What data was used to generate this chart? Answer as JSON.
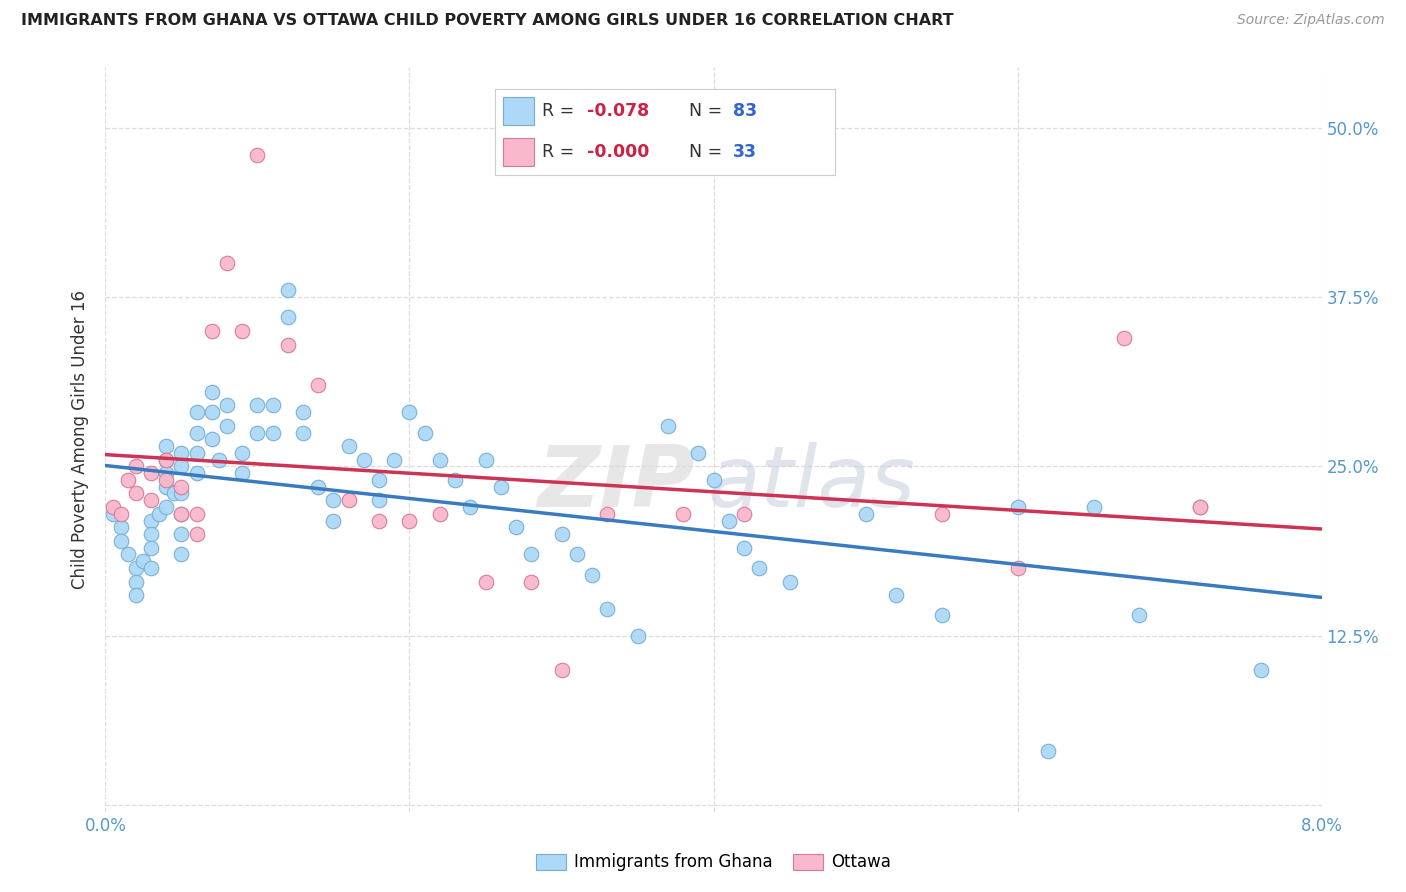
{
  "title": "IMMIGRANTS FROM GHANA VS OTTAWA CHILD POVERTY AMONG GIRLS UNDER 16 CORRELATION CHART",
  "source": "Source: ZipAtlas.com",
  "ylabel": "Child Poverty Among Girls Under 16",
  "xlim": [
    0.0,
    0.08
  ],
  "ylim": [
    -0.005,
    0.545
  ],
  "xticks": [
    0.0,
    0.02,
    0.04,
    0.06,
    0.08
  ],
  "xtick_labels": [
    "0.0%",
    "",
    "",
    "",
    "8.0%"
  ],
  "yticks": [
    0.0,
    0.125,
    0.25,
    0.375,
    0.5
  ],
  "ytick_labels_right": [
    "",
    "12.5%",
    "25.0%",
    "37.5%",
    "50.0%"
  ],
  "series1_color": "#add8f7",
  "series2_color": "#f9b8cc",
  "series1_edge": "#75aed4",
  "series2_edge": "#d87898",
  "trendline1_color": "#3a7abf",
  "trendline2_color": "#cc3355",
  "R1": -0.078,
  "N1": 83,
  "R2": -0.0,
  "N2": 33,
  "series1_x": [
    0.0005,
    0.001,
    0.001,
    0.0015,
    0.002,
    0.002,
    0.002,
    0.0025,
    0.003,
    0.003,
    0.003,
    0.003,
    0.0035,
    0.004,
    0.004,
    0.004,
    0.004,
    0.004,
    0.0045,
    0.005,
    0.005,
    0.005,
    0.005,
    0.005,
    0.005,
    0.006,
    0.006,
    0.006,
    0.006,
    0.007,
    0.007,
    0.007,
    0.0075,
    0.008,
    0.008,
    0.009,
    0.009,
    0.01,
    0.01,
    0.011,
    0.011,
    0.012,
    0.012,
    0.013,
    0.013,
    0.014,
    0.015,
    0.015,
    0.016,
    0.017,
    0.018,
    0.018,
    0.019,
    0.02,
    0.021,
    0.022,
    0.023,
    0.024,
    0.025,
    0.026,
    0.027,
    0.028,
    0.03,
    0.031,
    0.032,
    0.033,
    0.035,
    0.037,
    0.039,
    0.04,
    0.041,
    0.042,
    0.043,
    0.045,
    0.05,
    0.052,
    0.055,
    0.06,
    0.062,
    0.065,
    0.068,
    0.072,
    0.076
  ],
  "series1_y": [
    0.215,
    0.205,
    0.195,
    0.185,
    0.175,
    0.165,
    0.155,
    0.18,
    0.21,
    0.2,
    0.19,
    0.175,
    0.215,
    0.265,
    0.255,
    0.245,
    0.235,
    0.22,
    0.23,
    0.26,
    0.25,
    0.23,
    0.215,
    0.2,
    0.185,
    0.29,
    0.275,
    0.26,
    0.245,
    0.305,
    0.29,
    0.27,
    0.255,
    0.295,
    0.28,
    0.26,
    0.245,
    0.295,
    0.275,
    0.295,
    0.275,
    0.38,
    0.36,
    0.29,
    0.275,
    0.235,
    0.225,
    0.21,
    0.265,
    0.255,
    0.24,
    0.225,
    0.255,
    0.29,
    0.275,
    0.255,
    0.24,
    0.22,
    0.255,
    0.235,
    0.205,
    0.185,
    0.2,
    0.185,
    0.17,
    0.145,
    0.125,
    0.28,
    0.26,
    0.24,
    0.21,
    0.19,
    0.175,
    0.165,
    0.215,
    0.155,
    0.14,
    0.22,
    0.04,
    0.22,
    0.14,
    0.22,
    0.1
  ],
  "series2_x": [
    0.0005,
    0.001,
    0.0015,
    0.002,
    0.002,
    0.003,
    0.003,
    0.004,
    0.004,
    0.005,
    0.005,
    0.006,
    0.006,
    0.007,
    0.008,
    0.009,
    0.01,
    0.012,
    0.014,
    0.016,
    0.018,
    0.02,
    0.022,
    0.025,
    0.028,
    0.03,
    0.033,
    0.038,
    0.042,
    0.055,
    0.06,
    0.067,
    0.072
  ],
  "series2_y": [
    0.22,
    0.215,
    0.24,
    0.25,
    0.23,
    0.245,
    0.225,
    0.255,
    0.24,
    0.235,
    0.215,
    0.215,
    0.2,
    0.35,
    0.4,
    0.35,
    0.48,
    0.34,
    0.31,
    0.225,
    0.21,
    0.21,
    0.215,
    0.165,
    0.165,
    0.1,
    0.215,
    0.215,
    0.215,
    0.215,
    0.175,
    0.345,
    0.22
  ],
  "watermark_zip_color": "#d8d8d8",
  "watermark_atlas_color": "#c0c8d8",
  "legend_box_color": "#f0f4f8",
  "legend_border_color": "#cccccc",
  "tick_color": "#5599cc",
  "grid_color": "#dddddd",
  "title_color": "#222222",
  "source_color": "#999999",
  "ylabel_color": "#333333"
}
